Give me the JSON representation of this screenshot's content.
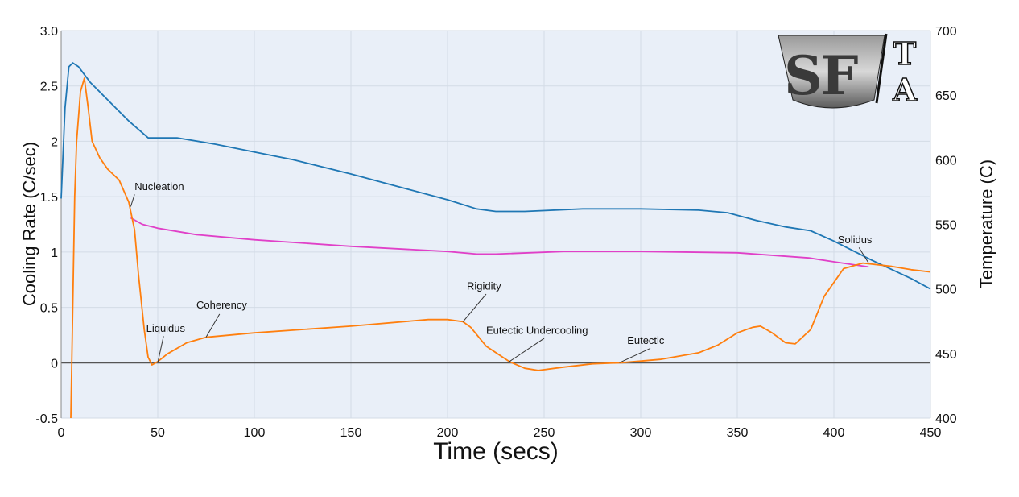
{
  "chart_data": {
    "type": "line",
    "xlabel": "Time (secs)",
    "ylabel_left": "Cooling Rate (C/sec)",
    "ylabel_right": "Temperature (C)",
    "xlim": [
      0,
      450
    ],
    "ylim_left": [
      -0.5,
      3.0
    ],
    "ylim_right": [
      400,
      700
    ],
    "x_ticks": [
      "0",
      "50",
      "100",
      "150",
      "200",
      "250",
      "300",
      "350",
      "400",
      "450"
    ],
    "y_left_ticks": [
      "-0.5",
      "0",
      "0.5",
      "1",
      "1.5",
      "2",
      "2.5",
      "3.0"
    ],
    "y_right_ticks": [
      "400",
      "450",
      "500",
      "550",
      "600",
      "650",
      "700"
    ],
    "grid": true,
    "background_color": "#e9eff8",
    "zero_line_color": "#555555",
    "series": [
      {
        "axis": "right",
        "color": "#1f77b4",
        "points": [
          [
            0,
            570
          ],
          [
            2,
            640
          ],
          [
            4,
            672
          ],
          [
            6,
            675
          ],
          [
            9,
            672
          ],
          [
            15,
            660
          ],
          [
            25,
            645
          ],
          [
            35,
            630
          ],
          [
            45,
            617
          ],
          [
            60,
            617
          ],
          [
            80,
            612
          ],
          [
            100,
            606
          ],
          [
            120,
            600
          ],
          [
            150,
            589
          ],
          [
            180,
            577
          ],
          [
            200,
            569
          ],
          [
            215,
            562
          ],
          [
            225,
            560
          ],
          [
            240,
            560
          ],
          [
            270,
            562
          ],
          [
            300,
            562
          ],
          [
            330,
            561
          ],
          [
            345,
            559
          ],
          [
            360,
            553
          ],
          [
            375,
            548
          ],
          [
            388,
            545
          ],
          [
            400,
            537
          ],
          [
            420,
            522
          ],
          [
            440,
            508
          ],
          [
            450,
            500
          ]
        ]
      },
      {
        "axis": "right",
        "color": "#e040c8",
        "points": [
          [
            36,
            555
          ],
          [
            42,
            550
          ],
          [
            50,
            547
          ],
          [
            70,
            542
          ],
          [
            100,
            538
          ],
          [
            150,
            533
          ],
          [
            200,
            529
          ],
          [
            215,
            527
          ],
          [
            225,
            527
          ],
          [
            260,
            529
          ],
          [
            300,
            529
          ],
          [
            350,
            528
          ],
          [
            387,
            524
          ],
          [
            400,
            521
          ],
          [
            418,
            517
          ]
        ]
      },
      {
        "axis": "left",
        "color": "#ff7f0e",
        "points": [
          [
            5,
            -0.5
          ],
          [
            6,
            0.5
          ],
          [
            7,
            1.5
          ],
          [
            8,
            2.0
          ],
          [
            10,
            2.45
          ],
          [
            12,
            2.57
          ],
          [
            14,
            2.3
          ],
          [
            16,
            2.0
          ],
          [
            20,
            1.85
          ],
          [
            24,
            1.75
          ],
          [
            30,
            1.65
          ],
          [
            35,
            1.45
          ],
          [
            38,
            1.2
          ],
          [
            40,
            0.8
          ],
          [
            43,
            0.3
          ],
          [
            45,
            0.05
          ],
          [
            47,
            -0.02
          ],
          [
            50,
            0.01
          ],
          [
            55,
            0.08
          ],
          [
            65,
            0.18
          ],
          [
            75,
            0.23
          ],
          [
            100,
            0.27
          ],
          [
            150,
            0.33
          ],
          [
            190,
            0.39
          ],
          [
            200,
            0.39
          ],
          [
            208,
            0.37
          ],
          [
            212,
            0.32
          ],
          [
            220,
            0.15
          ],
          [
            232,
            0.01
          ],
          [
            240,
            -0.05
          ],
          [
            247,
            -0.07
          ],
          [
            260,
            -0.04
          ],
          [
            275,
            -0.01
          ],
          [
            290,
            0.0
          ],
          [
            310,
            0.03
          ],
          [
            330,
            0.09
          ],
          [
            340,
            0.16
          ],
          [
            350,
            0.27
          ],
          [
            358,
            0.32
          ],
          [
            362,
            0.33
          ],
          [
            368,
            0.27
          ],
          [
            375,
            0.18
          ],
          [
            380,
            0.17
          ],
          [
            388,
            0.3
          ],
          [
            395,
            0.6
          ],
          [
            405,
            0.85
          ],
          [
            415,
            0.9
          ],
          [
            430,
            0.87
          ],
          [
            440,
            0.84
          ],
          [
            450,
            0.82
          ]
        ]
      }
    ],
    "annotations": [
      {
        "label": "Nucleation",
        "x": 36,
        "y": 1.41,
        "lx": 38,
        "ly": 1.52,
        "tx": 38,
        "ty": 1.56,
        "anchor": "start"
      },
      {
        "label": "Liquidus",
        "x": 50,
        "y": 0.0,
        "lx": 53,
        "ly": 0.24,
        "tx": 44,
        "ty": 0.28,
        "anchor": "start"
      },
      {
        "label": "Coherency",
        "x": 75,
        "y": 0.23,
        "lx": 82,
        "ly": 0.44,
        "tx": 70,
        "ty": 0.49,
        "anchor": "start"
      },
      {
        "label": "Rigidity",
        "x": 208,
        "y": 0.37,
        "lx": 220,
        "ly": 0.62,
        "tx": 210,
        "ty": 0.66,
        "anchor": "start"
      },
      {
        "label": "Eutectic Undercooling",
        "x": 232,
        "y": 0.01,
        "lx": 250,
        "ly": 0.22,
        "tx": 220,
        "ty": 0.26,
        "anchor": "start"
      },
      {
        "label": "Eutectic",
        "x": 289,
        "y": 0.0,
        "lx": 305,
        "ly": 0.13,
        "tx": 293,
        "ty": 0.17,
        "anchor": "start"
      },
      {
        "label": "Solidus",
        "x": 418,
        "y": 0.9,
        "lx": 413,
        "ly": 1.04,
        "tx": 402,
        "ty": 1.08,
        "anchor": "start"
      }
    ]
  },
  "logo": {
    "letters": [
      "S",
      "F"
    ],
    "small_letters": [
      "T",
      "A"
    ]
  }
}
